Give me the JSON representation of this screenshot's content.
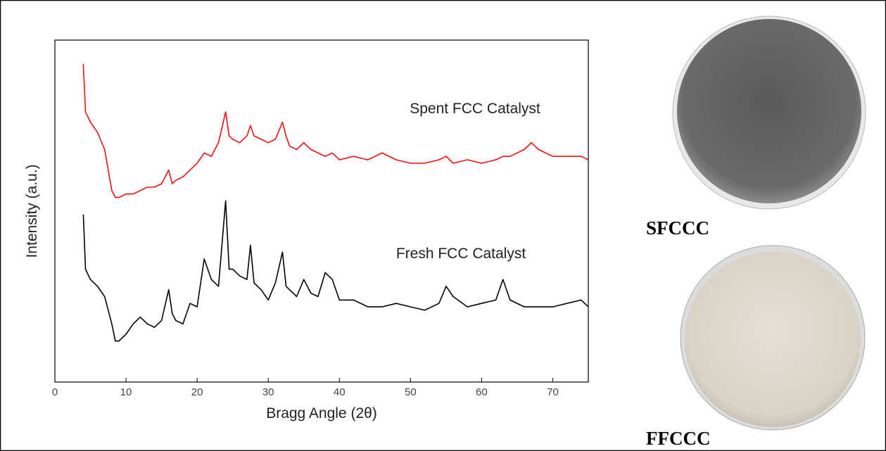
{
  "chart_data": {
    "type": "line",
    "xlabel": "Bragg Angle (2θ)",
    "ylabel": "Intensity (a.u.)",
    "xlim": [
      0,
      75
    ],
    "xticks": [
      0,
      10,
      20,
      30,
      40,
      50,
      60,
      70
    ],
    "ylim": [
      0,
      100
    ],
    "x": [
      4,
      4.3,
      5,
      6,
      7,
      8,
      8.5,
      9,
      10,
      11,
      12,
      13,
      14,
      15,
      16,
      16.5,
      17,
      18,
      19,
      20,
      21,
      22,
      23,
      24,
      24.5,
      25,
      26,
      27,
      27.5,
      28,
      29,
      30,
      31,
      32,
      32.5,
      33,
      34,
      35,
      36,
      37,
      38,
      39,
      40,
      42,
      44,
      46,
      48,
      50,
      52,
      54,
      55,
      56,
      58,
      60,
      62,
      63,
      64,
      66,
      67,
      68,
      70,
      72,
      74,
      75
    ],
    "series": [
      {
        "name": "Spent FCC Catalyst",
        "color": "#ee1111",
        "values": [
          93,
          79,
          76,
          73,
          68,
          56,
          54,
          54,
          55,
          55,
          56,
          57,
          57,
          58,
          62,
          58,
          59,
          60,
          62,
          64,
          67,
          66,
          70,
          79,
          72,
          71,
          70,
          72,
          75,
          72,
          71,
          70,
          71,
          76,
          72,
          69,
          68,
          70,
          68,
          67,
          66,
          67,
          65,
          66,
          65,
          67,
          65,
          64,
          64,
          65,
          66,
          64,
          65,
          64,
          65,
          66,
          66,
          68,
          70,
          68,
          66,
          66,
          66,
          65
        ]
      },
      {
        "name": "Fresh FCC Catalyst",
        "color": "#000000",
        "values": [
          49,
          33,
          30,
          28,
          25,
          17,
          12,
          12,
          14,
          17,
          19,
          17,
          16,
          18,
          27,
          20,
          18,
          17,
          23,
          22,
          36,
          30,
          28,
          53,
          33,
          33,
          31,
          30,
          40,
          29,
          27,
          24,
          29,
          38,
          28,
          27,
          25,
          30,
          26,
          25,
          32,
          30,
          24,
          24,
          22,
          22,
          23,
          22,
          21,
          23,
          28,
          25,
          22,
          23,
          24,
          30,
          24,
          22,
          22,
          22,
          22,
          23,
          24,
          22
        ]
      }
    ]
  },
  "images": [
    {
      "label": "SFCCC"
    },
    {
      "label": "FFCCC"
    }
  ]
}
